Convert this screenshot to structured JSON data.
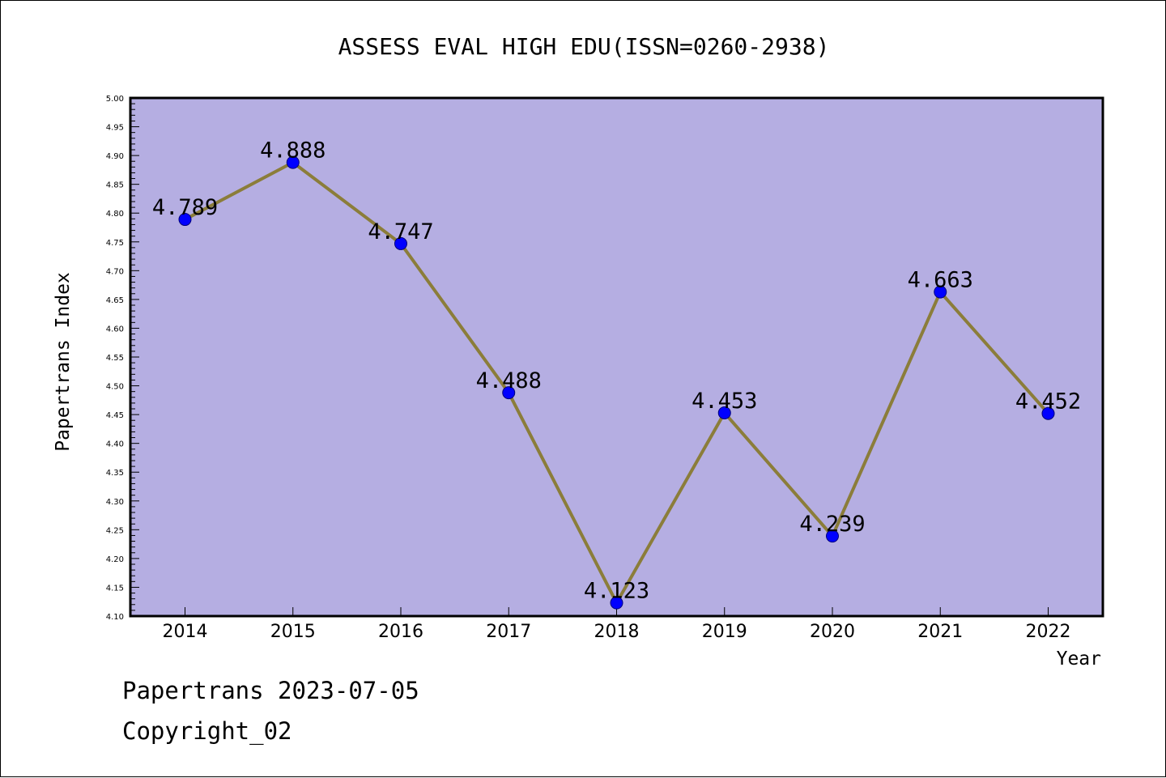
{
  "chart_data": {
    "type": "line",
    "title": "ASSESS EVAL HIGH EDU(ISSN=0260-2938)",
    "xlabel": "Year",
    "ylabel": "Papertrans Index",
    "categories": [
      "2014",
      "2015",
      "2016",
      "2017",
      "2018",
      "2019",
      "2020",
      "2021",
      "2022"
    ],
    "series": [
      {
        "values": [
          4.789,
          4.888,
          4.747,
          4.488,
          4.123,
          4.453,
          4.239,
          4.663,
          4.452
        ],
        "labels": [
          "4.789",
          "4.888",
          "4.747",
          "4.488",
          "4.123",
          "4.453",
          "4.239",
          "4.663",
          "4.452"
        ]
      }
    ],
    "ylim": [
      4.1,
      5.0
    ],
    "yticks": [
      "4.10",
      "4.15",
      "4.20",
      "4.25",
      "4.30",
      "4.35",
      "4.40",
      "4.45",
      "4.50",
      "4.55",
      "4.60",
      "4.65",
      "4.70",
      "4.75",
      "4.80",
      "4.85",
      "4.90",
      "4.95",
      "5.00"
    ],
    "grid": false,
    "colors": {
      "plot_background": "#b5aee2",
      "line": "#8b7d3a",
      "marker": "#0000ff",
      "marker_edge": "#00007a"
    }
  },
  "footer": {
    "line1": "Papertrans 2023-07-05",
    "line2": "Copyright_02"
  }
}
